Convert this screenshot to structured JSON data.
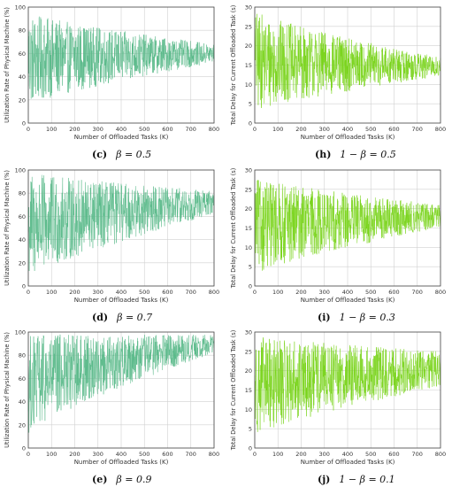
{
  "colors": {
    "utilization_series": "#5aba8a",
    "delay_series": "#79d41a",
    "grid": "#d0d0d0",
    "axis": "#444444"
  },
  "chart_data": [
    {
      "type": "line",
      "panel": "c",
      "caption": {
        "label": "(c)",
        "text": "β = 0.5"
      },
      "xlabel": "Number of Offloaded Tasks (K)",
      "ylabel": "Utilization Rate of Physical Machine (%)",
      "xlim": [
        0,
        800
      ],
      "ylim": [
        0,
        100
      ],
      "xticks": [
        0,
        100,
        200,
        300,
        400,
        500,
        600,
        700,
        800
      ],
      "yticks": [
        0,
        20,
        40,
        60,
        80,
        100
      ],
      "grid": true,
      "series": [
        {
          "values_note_free": true,
          "x_range": [
            0,
            800
          ],
          "start_band": [
            15,
            95
          ],
          "end_band": [
            52,
            68
          ],
          "center": 60
        }
      ]
    },
    {
      "type": "line",
      "panel": "h",
      "caption": {
        "label": "(h)",
        "text": "1 − β = 0.5"
      },
      "xlabel": "Number of Offloaded Tasks (K)",
      "ylabel": "Total Delay for Current Offloaded Task (s)",
      "xlim": [
        0,
        800
      ],
      "ylim": [
        0,
        30
      ],
      "xticks": [
        0,
        100,
        200,
        300,
        400,
        500,
        600,
        700,
        800
      ],
      "yticks": [
        0,
        5,
        10,
        15,
        20,
        25,
        30
      ],
      "grid": true,
      "series": [
        {
          "x_range": [
            0,
            800
          ],
          "start_band": [
            3,
            29
          ],
          "end_band": [
            12,
            17
          ],
          "center": 15
        }
      ]
    },
    {
      "type": "line",
      "panel": "d",
      "caption": {
        "label": "(d)",
        "text": "β = 0.7"
      },
      "xlabel": "Number of Offloaded Tasks (K)",
      "ylabel": "Utilization Rate of Physical Machine (%)",
      "xlim": [
        0,
        800
      ],
      "ylim": [
        0,
        100
      ],
      "xticks": [
        0,
        100,
        200,
        300,
        400,
        500,
        600,
        700,
        800
      ],
      "yticks": [
        0,
        20,
        40,
        60,
        80,
        100
      ],
      "grid": true,
      "series": [
        {
          "x_range": [
            0,
            800
          ],
          "start_band": [
            5,
            98
          ],
          "end_band": [
            62,
            82
          ],
          "center": 70
        }
      ]
    },
    {
      "type": "line",
      "panel": "i",
      "caption": {
        "label": "(i)",
        "text": "1 − β = 0.3"
      },
      "xlabel": "Number of Offloaded Tasks (K)",
      "ylabel": "Total Delay for Current Offloaded Task (s)",
      "xlim": [
        0,
        800
      ],
      "ylim": [
        0,
        30
      ],
      "xticks": [
        0,
        100,
        200,
        300,
        400,
        500,
        600,
        700,
        800
      ],
      "yticks": [
        0,
        5,
        10,
        15,
        20,
        25,
        30
      ],
      "grid": true,
      "series": [
        {
          "x_range": [
            0,
            800
          ],
          "start_band": [
            3,
            28
          ],
          "end_band": [
            15,
            21
          ],
          "center": 17
        }
      ]
    },
    {
      "type": "line",
      "panel": "e",
      "caption": {
        "label": "(e)",
        "text": "β = 0.9"
      },
      "xlabel": "Number of Offloaded Tasks (K)",
      "ylabel": "Utilization Rate of Physical Machine (%)",
      "xlim": [
        0,
        800
      ],
      "ylim": [
        0,
        100
      ],
      "xticks": [
        0,
        100,
        200,
        300,
        400,
        500,
        600,
        700,
        800
      ],
      "yticks": [
        0,
        20,
        40,
        60,
        80,
        100
      ],
      "grid": true,
      "series": [
        {
          "x_range": [
            0,
            800
          ],
          "start_band": [
            12,
            98
          ],
          "end_band": [
            82,
            98
          ],
          "center": 90
        }
      ]
    },
    {
      "type": "line",
      "panel": "j",
      "caption": {
        "label": "(j)",
        "text": "1 − β = 0.1"
      },
      "xlabel": "Number of Offloaded Tasks (K)",
      "ylabel": "Total Delay for Current Offloaded Task (s)",
      "xlim": [
        0,
        800
      ],
      "ylim": [
        0,
        30
      ],
      "xticks": [
        0,
        100,
        200,
        300,
        400,
        500,
        600,
        700,
        800
      ],
      "yticks": [
        0,
        5,
        10,
        15,
        20,
        25,
        30
      ],
      "grid": true,
      "series": [
        {
          "x_range": [
            0,
            800
          ],
          "start_band": [
            3,
            29
          ],
          "end_band": [
            16,
            25
          ],
          "center": 19
        }
      ]
    }
  ]
}
